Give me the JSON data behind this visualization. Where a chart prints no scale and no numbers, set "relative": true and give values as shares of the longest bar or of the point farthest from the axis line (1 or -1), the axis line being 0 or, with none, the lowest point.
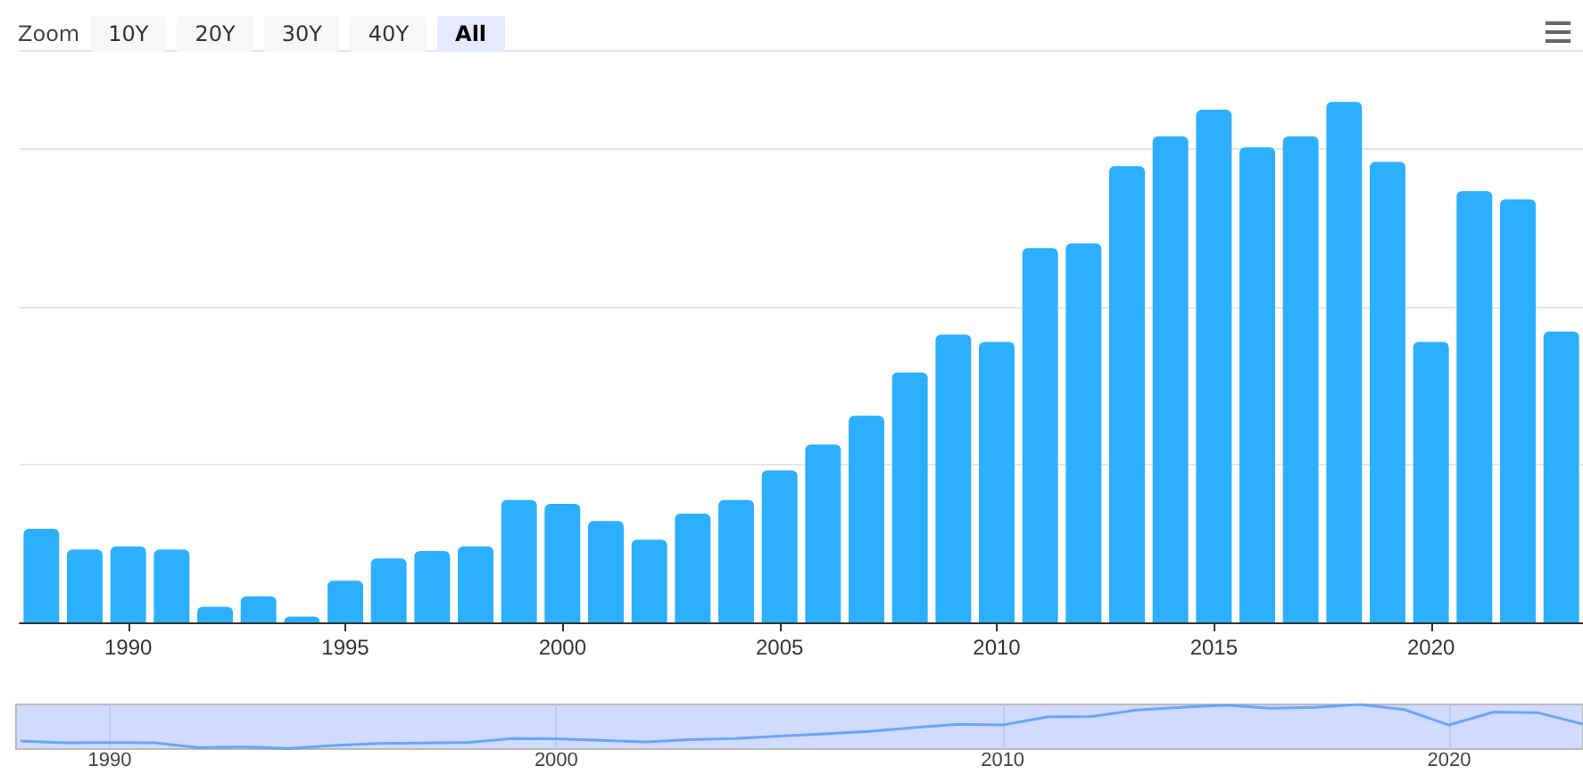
{
  "chart_data": [
    {
      "type": "bar",
      "relative": true,
      "grid": true,
      "color": "#2caffe",
      "annotations": [
        "Zoom",
        "10Y",
        "20Y",
        "30Y",
        "40Y",
        "All"
      ],
      "categories": [
        null,
        null,
        "1990",
        null,
        null,
        null,
        null,
        "1995",
        null,
        null,
        null,
        null,
        "2000",
        null,
        null,
        null,
        null,
        "2005",
        null,
        null,
        null,
        null,
        "2010",
        null,
        null,
        null,
        null,
        "2015",
        null,
        null,
        null,
        null,
        "2020",
        null,
        null,
        null
      ],
      "values": [
        0.18,
        0.14,
        0.146,
        0.14,
        0.03,
        0.05,
        0.011,
        0.08,
        0.123,
        0.137,
        0.146,
        0.235,
        0.228,
        0.195,
        0.159,
        0.209,
        0.235,
        0.292,
        0.342,
        0.397,
        0.48,
        0.553,
        0.539,
        0.719,
        0.728,
        0.877,
        0.934,
        0.985,
        0.913,
        0.934,
        1,
        0.885,
        0.539,
        0.829,
        0.813,
        0.559
      ]
    },
    {
      "type": "line",
      "relative": true,
      "grid": "x",
      "color": "#6aa6f8",
      "tick_labels": "x",
      "xlim": [
        1987.9,
        2023
      ],
      "xticks": [
        1990,
        2000,
        2010,
        2020
      ],
      "x": [
        1988,
        1989,
        1990,
        1991,
        1992,
        1993,
        1994,
        1995,
        1996,
        1997,
        1998,
        1999,
        2000,
        2001,
        2002,
        2003,
        2004,
        2005,
        2006,
        2007,
        2008,
        2009,
        2010,
        2011,
        2012,
        2013,
        2014,
        2015,
        2016,
        2017,
        2018,
        2019,
        2020,
        2021,
        2022,
        2023
      ],
      "values": [
        0.18,
        0.14,
        0.146,
        0.14,
        0.03,
        0.05,
        0.011,
        0.08,
        0.123,
        0.137,
        0.146,
        0.235,
        0.228,
        0.195,
        0.159,
        0.209,
        0.235,
        0.292,
        0.342,
        0.397,
        0.48,
        0.553,
        0.539,
        0.719,
        0.728,
        0.877,
        0.934,
        0.985,
        0.913,
        0.934,
        1,
        0.885,
        0.539,
        0.829,
        0.813,
        0.559
      ]
    }
  ]
}
